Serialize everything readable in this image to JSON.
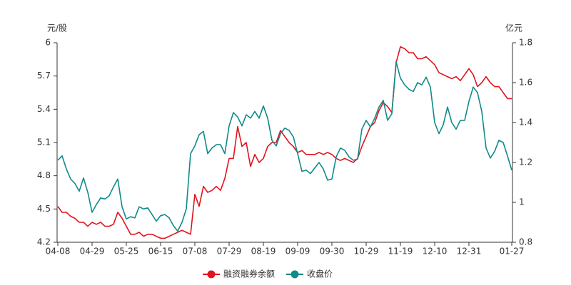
{
  "chart_data": {
    "type": "line",
    "ylabel": "元/股",
    "y2label": "亿元",
    "categories": [
      "04-08",
      null,
      null,
      null,
      null,
      null,
      null,
      null,
      "04-29",
      null,
      null,
      null,
      null,
      null,
      null,
      null,
      "05-25",
      null,
      null,
      null,
      null,
      null,
      null,
      null,
      "06-15",
      null,
      null,
      null,
      null,
      null,
      null,
      null,
      "07-08",
      null,
      null,
      null,
      null,
      null,
      null,
      null,
      "07-29",
      null,
      null,
      null,
      null,
      null,
      null,
      null,
      "08-19",
      null,
      null,
      null,
      null,
      null,
      null,
      null,
      "09-09",
      null,
      null,
      null,
      null,
      null,
      null,
      null,
      "09-30",
      null,
      null,
      null,
      null,
      null,
      null,
      null,
      "10-29",
      null,
      null,
      null,
      null,
      null,
      null,
      null,
      "11-19",
      null,
      null,
      null,
      null,
      null,
      null,
      null,
      "12-10",
      null,
      null,
      null,
      null,
      null,
      null,
      null,
      "12-31",
      null,
      null,
      null,
      null,
      null,
      null,
      null,
      null,
      null,
      "01-27"
    ],
    "series": [
      {
        "name": "融资融券余额",
        "color": "#e0141e",
        "axis": "y2",
        "values": [
          0.98,
          0.95,
          0.95,
          0.93,
          0.92,
          0.9,
          0.9,
          0.88,
          0.9,
          0.89,
          0.9,
          0.88,
          0.88,
          0.89,
          0.95,
          0.92,
          0.88,
          0.84,
          0.84,
          0.85,
          0.83,
          0.84,
          0.84,
          0.83,
          0.82,
          0.82,
          0.83,
          0.84,
          0.85,
          0.86,
          0.85,
          0.84,
          1.04,
          0.98,
          1.08,
          1.05,
          1.06,
          1.08,
          1.06,
          1.12,
          1.22,
          1.22,
          1.38,
          1.28,
          1.3,
          1.18,
          1.24,
          1.2,
          1.22,
          1.28,
          1.3,
          1.3,
          1.36,
          1.33,
          1.3,
          1.28,
          1.25,
          1.26,
          1.24,
          1.24,
          1.24,
          1.25,
          1.24,
          1.25,
          1.24,
          1.22,
          1.21,
          1.22,
          1.21,
          1.2,
          1.22,
          1.28,
          1.33,
          1.38,
          1.4,
          1.46,
          1.5,
          1.48,
          1.45,
          1.7,
          1.78,
          1.77,
          1.75,
          1.75,
          1.72,
          1.72,
          1.73,
          1.71,
          1.69,
          1.65,
          1.64,
          1.63,
          1.62,
          1.63,
          1.61,
          1.64,
          1.67,
          1.64,
          1.58,
          1.6,
          1.63,
          1.6,
          1.58,
          1.58,
          1.55,
          1.52,
          1.52
        ]
      },
      {
        "name": "收盘价",
        "color": "#108a8a",
        "values": [
          4.94,
          4.98,
          4.86,
          4.77,
          4.73,
          4.66,
          4.78,
          4.65,
          4.47,
          4.54,
          4.6,
          4.59,
          4.62,
          4.7,
          4.77,
          4.52,
          4.41,
          4.43,
          4.42,
          4.52,
          4.5,
          4.51,
          4.45,
          4.39,
          4.44,
          4.45,
          4.42,
          4.35,
          4.3,
          4.38,
          4.5,
          5.0,
          5.07,
          5.17,
          5.2,
          5.0,
          5.05,
          5.08,
          5.08,
          5.0,
          5.25,
          5.37,
          5.33,
          5.25,
          5.35,
          5.32,
          5.38,
          5.32,
          5.43,
          5.32,
          5.12,
          5.07,
          5.18,
          5.23,
          5.21,
          5.15,
          5.0,
          4.84,
          4.85,
          4.82,
          4.87,
          4.92,
          4.86,
          4.76,
          4.77,
          4.97,
          5.05,
          5.03,
          4.97,
          4.94,
          4.95,
          5.22,
          5.3,
          5.24,
          5.32,
          5.42,
          5.48,
          5.3,
          5.36,
          5.83,
          5.68,
          5.62,
          5.58,
          5.56,
          5.64,
          5.62,
          5.69,
          5.6,
          5.28,
          5.18,
          5.26,
          5.42,
          5.28,
          5.22,
          5.3,
          5.3,
          5.47,
          5.6,
          5.55,
          5.38,
          5.05,
          4.96,
          5.02,
          5.12,
          5.1,
          4.98,
          4.85
        ]
      }
    ],
    "ylim": [
      4.2,
      6
    ],
    "yticks": [
      4.2,
      4.5,
      4.8,
      5.1,
      5.4,
      5.7,
      6
    ],
    "y2lim": [
      0.8,
      1.8
    ],
    "y2ticks": [
      0.8,
      1,
      1.2,
      1.4,
      1.6,
      1.8
    ],
    "grid": false,
    "legend": "bottom"
  }
}
